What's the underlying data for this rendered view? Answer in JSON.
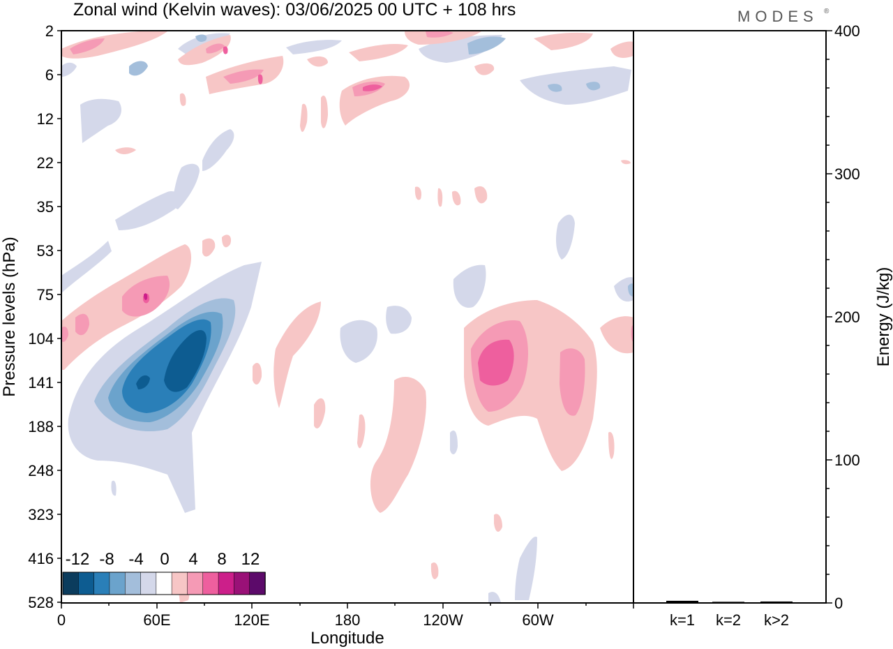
{
  "title": "Zonal wind (Kelvin waves):  03/06/2025  00 UTC  + 108 hrs",
  "logo": "MODES",
  "logo_mark": "®",
  "colors": {
    "neg_darkest": "#0b3c5d",
    "neg_5": "#0d5c91",
    "neg_4": "#2a7fb8",
    "neg_3": "#6ba3cc",
    "neg_2": "#a3bedb",
    "neg_1": "#d4d8ea",
    "zero": "#ffffff",
    "pos_1": "#f7c6c6",
    "pos_2": "#f59ab5",
    "pos_3": "#ee5f9e",
    "pos_4": "#cc1f8a",
    "pos_5": "#9a1177",
    "pos_darkest": "#5c0a6a"
  },
  "chart_data": [
    {
      "type": "heatmap",
      "title": "Zonal wind (Kelvin waves):  03/06/2025  00 UTC  + 108 hrs",
      "xlabel": "Longitude",
      "ylabel": "Pressure levels (hPa)",
      "x_ticks": [
        "0",
        "60E",
        "120E",
        "180",
        "120W",
        "60W"
      ],
      "x_range_deg": [
        0,
        360
      ],
      "y_ticks": [
        "2",
        "6",
        "12",
        "22",
        "35",
        "53",
        "75",
        "104",
        "141",
        "188",
        "248",
        "323",
        "416",
        "528"
      ],
      "colorbar": {
        "labels": [
          "-12",
          "-8",
          "-4",
          "0",
          "4",
          "8",
          "12"
        ],
        "levels": [
          -14,
          -12,
          -10,
          -8,
          -6,
          -4,
          -2,
          2,
          4,
          6,
          8,
          10,
          12,
          14
        ],
        "colors": [
          "#0b3c5d",
          "#0d5c91",
          "#2a7fb8",
          "#6ba3cc",
          "#a3bedb",
          "#d4d8ea",
          "#ffffff",
          "#f7c6c6",
          "#f59ab5",
          "#ee5f9e",
          "#cc1f8a",
          "#9a1177",
          "#5c0a6a"
        ]
      },
      "features": [
        {
          "sign": "negative",
          "peak": -12,
          "lon_range": [
            20,
            80
          ],
          "level_range": [
            "75",
            "248"
          ],
          "note": "strong easterly anomaly"
        },
        {
          "sign": "positive",
          "peak": 8,
          "lon_range": [
            230,
            290
          ],
          "level_range": [
            "104",
            "188"
          ]
        },
        {
          "sign": "positive",
          "peak": 8,
          "lon_range": [
            30,
            60
          ],
          "level_range": [
            "53",
            "104"
          ]
        }
      ]
    },
    {
      "type": "bar",
      "ylabel": "Energy (J/kg)",
      "categories": [
        "k=1",
        "k=2",
        "k>2"
      ],
      "values": [
        1.5,
        0.8,
        1.0
      ],
      "ylim": [
        0,
        400
      ],
      "y_ticks": [
        "0",
        "100",
        "200",
        "300",
        "400"
      ]
    }
  ]
}
